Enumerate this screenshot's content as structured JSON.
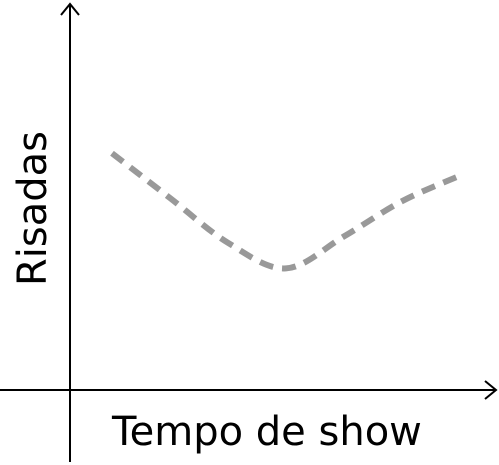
{
  "chart_data": {
    "type": "line",
    "xlabel": "Tempo de show",
    "ylabel": "Risadas",
    "x": [
      0,
      1,
      2,
      3,
      4,
      5,
      6
    ],
    "series": [
      {
        "values": [
          74,
          60,
          46,
          38,
          48,
          59,
          67
        ]
      }
    ],
    "xlim": [
      0,
      6
    ],
    "ylim": [
      0,
      100
    ],
    "grid": false,
    "line_style": "dashed",
    "colors": {
      "axis": "#000000",
      "series": "#999999"
    }
  }
}
